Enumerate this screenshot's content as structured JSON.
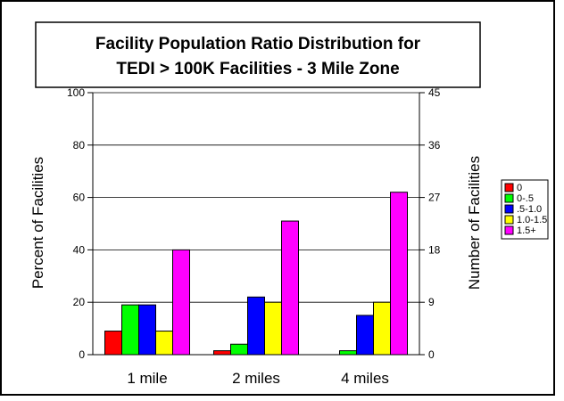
{
  "chart_data": {
    "type": "bar",
    "title": [
      "Facility Population Ratio Distribution for",
      "TEDI > 100K Facilities - 3 Mile Zone"
    ],
    "categories": [
      "1 mile",
      "2 miles",
      "4 miles"
    ],
    "ylabel": "Percent of Facilities",
    "y2label": "Number of Facilities",
    "ylim": [
      0,
      100
    ],
    "y2lim": [
      0,
      45
    ],
    "yticks": [
      "0",
      "20",
      "40",
      "60",
      "80",
      "100"
    ],
    "y2ticks": [
      "0",
      "9",
      "18",
      "27",
      "36",
      "45"
    ],
    "grid": true,
    "legend_position": "right",
    "series": [
      {
        "name": "0",
        "color": "#ff0000",
        "values": [
          9,
          1.5,
          0
        ]
      },
      {
        "name": "0-.5",
        "color": "#00ff00",
        "values": [
          19,
          4,
          1.5
        ]
      },
      {
        "name": ".5-1.0",
        "color": "#0000ff",
        "values": [
          19,
          22,
          15
        ]
      },
      {
        "name": "1.0-1.5",
        "color": "#ffff00",
        "values": [
          9,
          20,
          20
        ]
      },
      {
        "name": "1.5+",
        "color": "#ff00ff",
        "values": [
          40,
          51,
          62
        ]
      }
    ]
  }
}
